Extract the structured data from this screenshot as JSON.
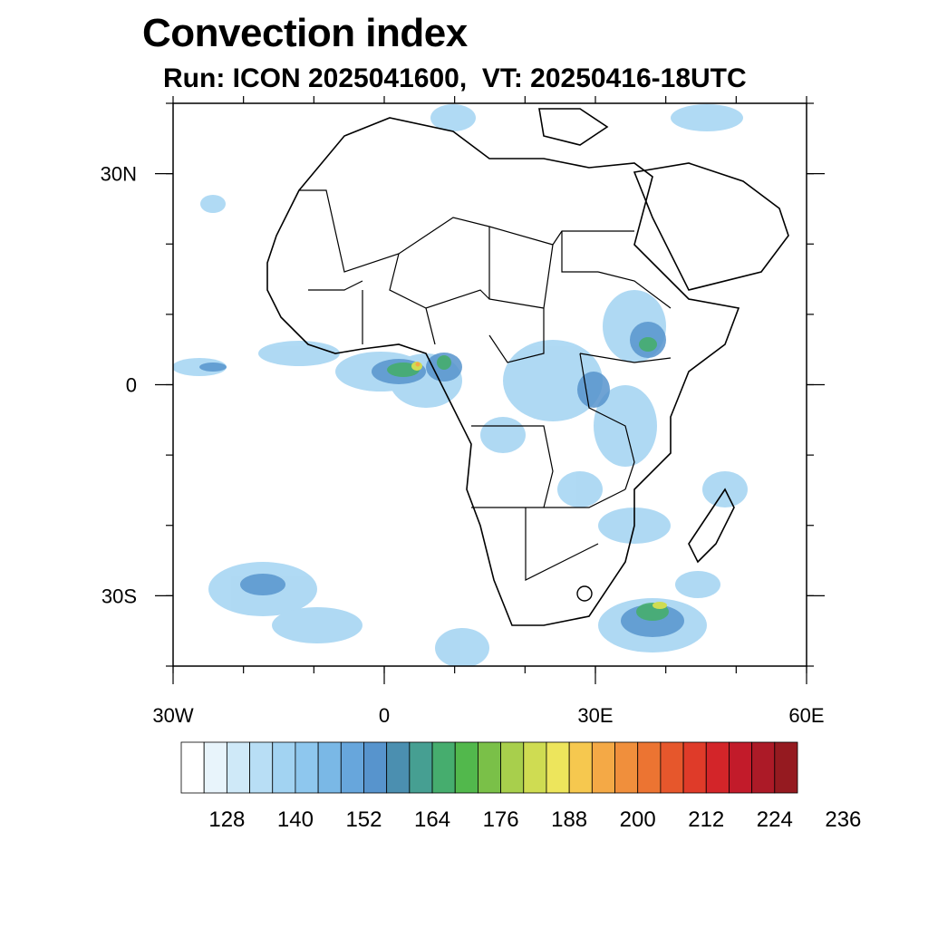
{
  "title": "Convection index",
  "subtitle": "Run: ICON 2025041600,  VT: 20250416-18UTC",
  "map": {
    "lon_range": [
      -30,
      60
    ],
    "lat_range": [
      -40,
      40
    ],
    "lon_ticks": [
      {
        "value": -30,
        "label": "30W"
      },
      {
        "value": 0,
        "label": "0"
      },
      {
        "value": 30,
        "label": "30E"
      },
      {
        "value": 60,
        "label": "60E"
      }
    ],
    "lat_ticks": [
      {
        "value": 30,
        "label": "30N"
      },
      {
        "value": 0,
        "label": "0"
      },
      {
        "value": -30,
        "label": "30S"
      }
    ]
  },
  "colorbar": {
    "colors": [
      "#ffffff",
      "#e8f4fb",
      "#cfe9f8",
      "#b8def5",
      "#a2d3f2",
      "#8ec7ee",
      "#7ab8e6",
      "#67a6dc",
      "#5794cd",
      "#4b8fb0",
      "#469f92",
      "#46ad6e",
      "#52b84c",
      "#7ac048",
      "#a8cf4c",
      "#cfdc52",
      "#ede55c",
      "#f6c84f",
      "#f4a946",
      "#f08f3c",
      "#ec7432",
      "#e6572c",
      "#df3b29",
      "#d32529",
      "#c21b2a",
      "#ac1a27",
      "#951a20"
    ],
    "labels": [
      "128",
      "140",
      "152",
      "164",
      "176",
      "188",
      "200",
      "212",
      "224",
      "236"
    ]
  }
}
